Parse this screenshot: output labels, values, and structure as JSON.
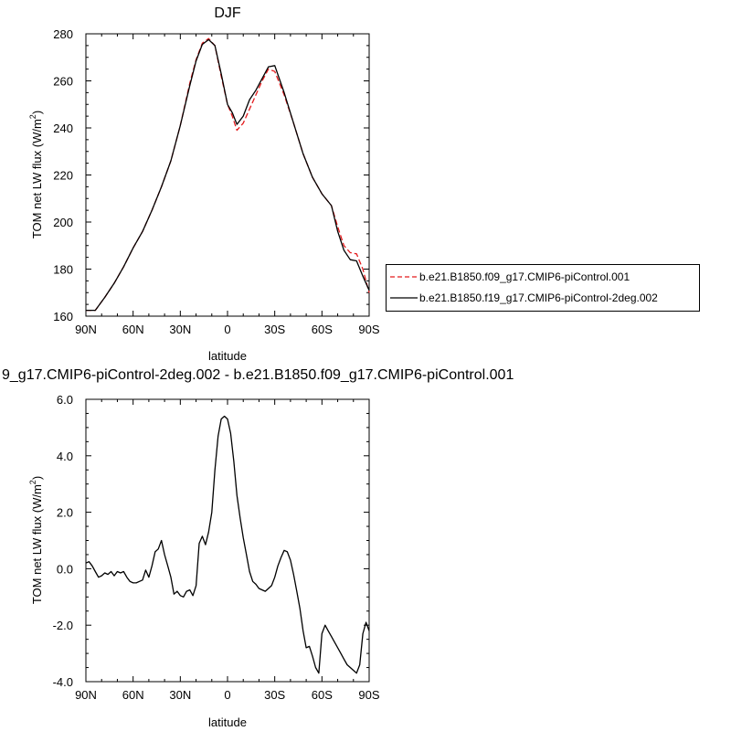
{
  "chart_data": [
    {
      "type": "line",
      "title": "DJF",
      "xlabel": "latitude",
      "ylabel": "TOM net LW flux (W/m",
      "ylabel_sup": "2",
      "ylabel_end": ")",
      "xlim": [
        90,
        -90
      ],
      "ylim": [
        160,
        280
      ],
      "xticks": [
        90,
        60,
        30,
        0,
        -30,
        -60,
        -90
      ],
      "xtick_labels": [
        "90N",
        "60N",
        "30N",
        "0",
        "30S",
        "60S",
        "90S"
      ],
      "yticks": [
        160,
        180,
        200,
        220,
        240,
        260,
        280
      ],
      "ytick_labels": [
        "160",
        "180",
        "200",
        "220",
        "240",
        "260",
        "280"
      ],
      "legend": "right",
      "series": [
        {
          "name": "b.e21.B1850.f09_g17.CMIP6-piControl.001",
          "color": "#e41a1c",
          "dash": "dashed",
          "x": [
            90,
            84,
            78,
            72,
            66,
            60,
            54,
            48,
            42,
            36,
            30,
            24,
            20,
            16,
            12,
            8,
            4,
            0,
            -3,
            -6,
            -10,
            -14,
            -18,
            -22,
            -26,
            -30,
            -36,
            -42,
            -48,
            -54,
            -60,
            -66,
            -70,
            -74,
            -78,
            -82,
            -86,
            -90
          ],
          "y": [
            162.5,
            162.5,
            168,
            174,
            181,
            189,
            196,
            205,
            215,
            226,
            241,
            259,
            269,
            276,
            278,
            275,
            262,
            250,
            245,
            239,
            242,
            248,
            254,
            260,
            265,
            264,
            254,
            242,
            229,
            219,
            212,
            207,
            198,
            190,
            187,
            186.5,
            180,
            170
          ]
        },
        {
          "name": "b.e21.B1850.f19_g17.CMIP6-piControl-2deg.002",
          "color": "#000000",
          "dash": "solid",
          "x": [
            90,
            84,
            78,
            72,
            66,
            60,
            54,
            48,
            42,
            36,
            30,
            24,
            20,
            16,
            12,
            8,
            4,
            0,
            -3,
            -6,
            -10,
            -14,
            -18,
            -22,
            -26,
            -30,
            -36,
            -42,
            -48,
            -54,
            -60,
            -66,
            -70,
            -74,
            -78,
            -82,
            -86,
            -90
          ],
          "y": [
            162.5,
            162.5,
            168,
            174,
            181,
            189,
            196,
            205,
            215,
            226,
            241,
            258,
            268.5,
            275.5,
            277.5,
            275,
            263,
            250,
            246.5,
            241.5,
            245,
            252,
            256,
            261,
            266,
            266.5,
            255,
            242,
            229,
            219,
            212,
            207,
            196,
            188,
            184,
            183.5,
            177,
            171
          ]
        }
      ]
    },
    {
      "type": "line",
      "title": "9_g17.CMIP6-piControl-2deg.002 - b.e21.B1850.f09_g17.CMIP6-piControl.001",
      "xlabel": "latitude",
      "ylabel": "TOM net LW flux (W/m",
      "ylabel_sup": "2",
      "ylabel_end": ")",
      "xlim": [
        90,
        -90
      ],
      "ylim": [
        -4.0,
        6.0
      ],
      "xticks": [
        90,
        60,
        30,
        0,
        -30,
        -60,
        -90
      ],
      "xtick_labels": [
        "90N",
        "60N",
        "30N",
        "0",
        "30S",
        "60S",
        "90S"
      ],
      "yticks": [
        -4,
        -2,
        0,
        2,
        4,
        6
      ],
      "ytick_labels": [
        "-4.0",
        "-2.0",
        "0.0",
        "2.0",
        "4.0",
        "6.0"
      ],
      "series": [
        {
          "color": "#000000",
          "dash": "solid",
          "x": [
            90,
            88,
            86,
            84,
            82,
            80,
            78,
            76,
            74,
            72,
            70,
            68,
            66,
            64,
            62,
            60,
            58,
            56,
            54,
            52,
            50,
            48,
            46,
            44,
            42,
            40,
            38,
            36,
            34,
            32,
            30,
            28,
            26,
            24,
            22,
            20,
            18,
            16,
            14,
            12,
            10,
            8,
            6,
            4,
            2,
            0,
            -2,
            -4,
            -6,
            -8,
            -10,
            -12,
            -14,
            -16,
            -18,
            -20,
            -22,
            -24,
            -26,
            -28,
            -30,
            -32,
            -34,
            -36,
            -38,
            -40,
            -42,
            -44,
            -46,
            -48,
            -50,
            -52,
            -54,
            -56,
            -58,
            -60,
            -62,
            -64,
            -66,
            -68,
            -70,
            -72,
            -74,
            -76,
            -78,
            -80,
            -82,
            -84,
            -86,
            -88,
            -90
          ],
          "y": [
            0.2,
            0.25,
            0.1,
            -0.1,
            -0.3,
            -0.25,
            -0.15,
            -0.2,
            -0.1,
            -0.25,
            -0.1,
            -0.15,
            -0.1,
            -0.3,
            -0.45,
            -0.5,
            -0.5,
            -0.45,
            -0.4,
            -0.05,
            -0.3,
            0.1,
            0.6,
            0.7,
            1.0,
            0.5,
            0.1,
            -0.3,
            -0.9,
            -0.8,
            -0.95,
            -1.0,
            -0.8,
            -0.75,
            -0.95,
            -0.6,
            0.9,
            1.15,
            0.85,
            1.3,
            2.0,
            3.5,
            4.7,
            5.3,
            5.4,
            5.3,
            4.8,
            3.8,
            2.6,
            1.8,
            1.1,
            0.5,
            -0.1,
            -0.45,
            -0.55,
            -0.7,
            -0.75,
            -0.8,
            -0.7,
            -0.6,
            -0.3,
            0.1,
            0.4,
            0.65,
            0.6,
            0.3,
            -0.2,
            -0.8,
            -1.4,
            -2.2,
            -2.8,
            -2.75,
            -3.1,
            -3.5,
            -3.7,
            -2.3,
            -2.0,
            -2.2,
            -2.4,
            -2.6,
            -2.8,
            -3.0,
            -3.2,
            -3.4,
            -3.5,
            -3.6,
            -3.7,
            -3.4,
            -2.3,
            -1.9,
            -2.2
          ]
        }
      ]
    }
  ]
}
